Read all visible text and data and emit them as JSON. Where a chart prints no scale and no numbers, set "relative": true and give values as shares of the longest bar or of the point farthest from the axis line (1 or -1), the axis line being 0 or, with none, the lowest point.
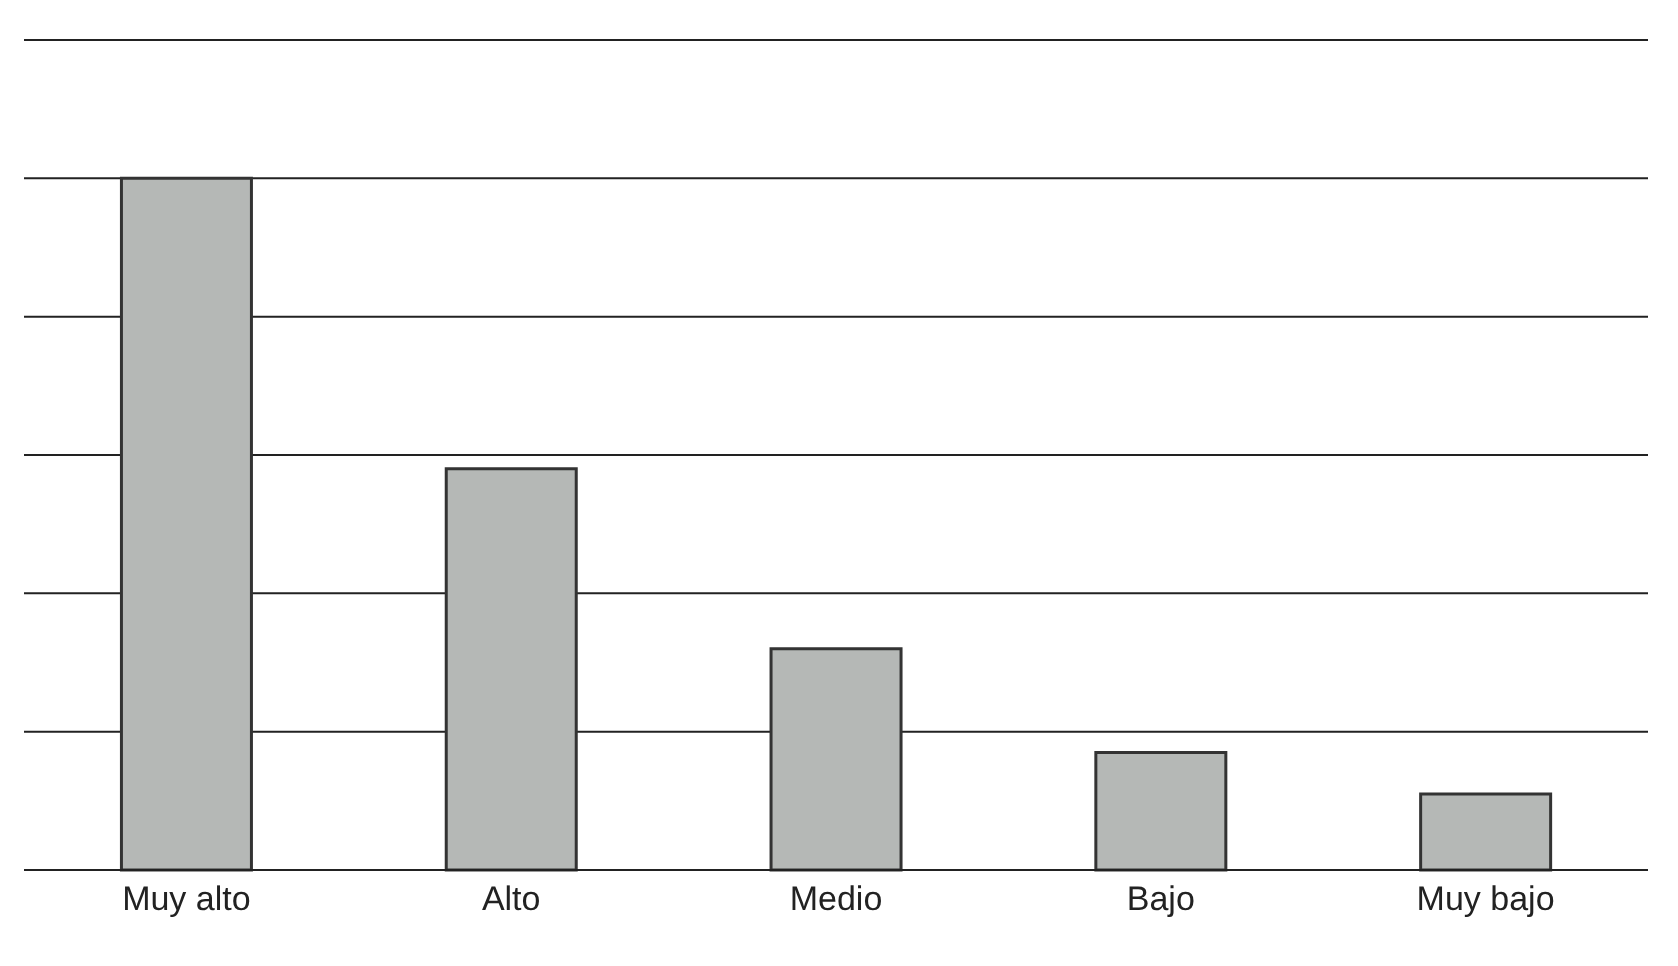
{
  "chart_data": {
    "type": "bar",
    "relative": true,
    "categories": [
      "Muy alto",
      "Alto",
      "Medio",
      "Bajo",
      "Muy bajo"
    ],
    "values": [
      1,
      0.58,
      0.32,
      0.17,
      0.11
    ],
    "color": "#b5b8b6",
    "grid": "y"
  }
}
